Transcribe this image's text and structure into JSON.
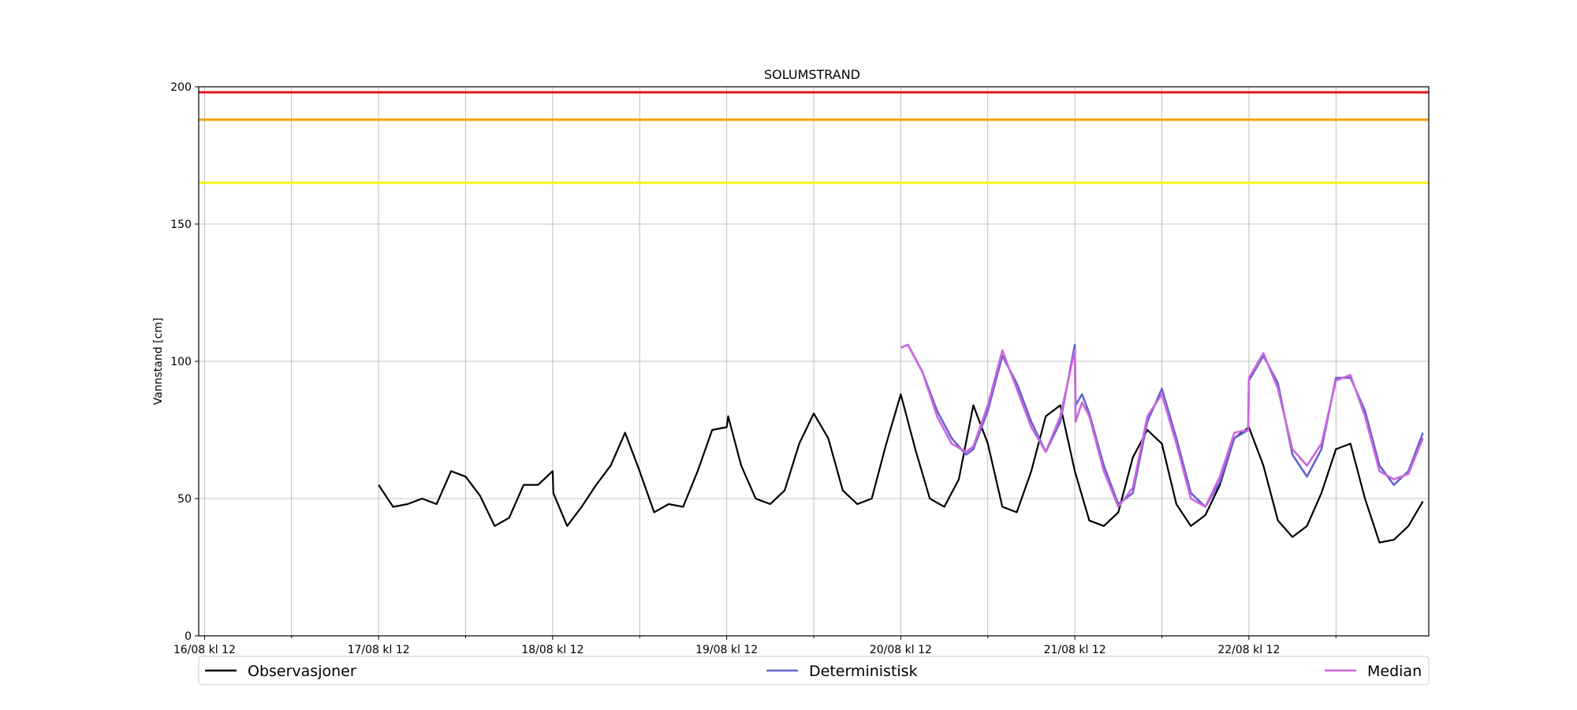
{
  "chart_data": {
    "type": "line",
    "title": "SOLUMSTRAND",
    "xlabel": "",
    "ylabel": "Vannstand [cm]",
    "x_unit": "hours from 16/08 kl 12",
    "xlim": [
      -0.8,
      168.8
    ],
    "ylim": [
      0,
      200
    ],
    "yticks": [
      0,
      50,
      100,
      150,
      200
    ],
    "xticks_major": [
      {
        "x": 0,
        "label": "16/08 kl 12"
      },
      {
        "x": 24,
        "label": "17/08 kl 12"
      },
      {
        "x": 48,
        "label": "18/08 kl 12"
      },
      {
        "x": 72,
        "label": "19/08 kl 12"
      },
      {
        "x": 96,
        "label": "20/08 kl 12"
      },
      {
        "x": 120,
        "label": "21/08 kl 12"
      },
      {
        "x": 144,
        "label": "22/08 kl 12"
      }
    ],
    "xticks_minor": [
      12,
      36,
      60,
      84,
      108,
      132,
      156
    ],
    "grid": true,
    "thresholds": [
      {
        "level": 198,
        "color": "#e8141e"
      },
      {
        "level": 188,
        "color": "#f5a30a"
      },
      {
        "level": 165,
        "color": "#f5f51e"
      }
    ],
    "legend_placement": "bottom",
    "series": [
      {
        "name": "Observasjoner",
        "color": "#000000",
        "x": [
          24,
          26,
          28,
          30,
          32,
          34,
          36,
          38,
          40,
          42,
          44,
          46,
          48,
          48.1,
          50,
          52,
          54,
          56,
          58,
          60,
          62,
          64,
          66,
          68,
          70,
          72,
          72.2,
          74,
          76,
          78,
          80,
          82,
          84,
          86,
          88,
          90,
          92,
          94,
          96,
          98,
          100,
          102,
          104,
          106,
          108,
          110,
          112,
          114,
          116,
          118,
          120,
          122,
          124,
          126,
          128,
          130,
          132,
          134,
          136,
          138,
          140,
          142,
          144,
          146,
          148,
          150,
          152,
          154,
          156,
          158,
          160,
          162,
          164,
          166,
          168
        ],
        "y": [
          55,
          47,
          48,
          50,
          48,
          60,
          58,
          51,
          40,
          43,
          55,
          55,
          60,
          52,
          40,
          47,
          55,
          62,
          74,
          60,
          45,
          48,
          47,
          60,
          75,
          76,
          80,
          62,
          50,
          48,
          53,
          70,
          81,
          72,
          53,
          48,
          50,
          70,
          88,
          68,
          50,
          47,
          57,
          84,
          70,
          47,
          45,
          60,
          80,
          84,
          60,
          42,
          40,
          45,
          65,
          75,
          70,
          48,
          40,
          44,
          55,
          72,
          76,
          62,
          42,
          36,
          40,
          52,
          68,
          70,
          50,
          34,
          35,
          40,
          49
        ]
      },
      {
        "name": "Deterministisk",
        "color": "#6464d2",
        "x": [
          96,
          97,
          99,
          101,
          103,
          105,
          106,
          108,
          110,
          112,
          114,
          116,
          118,
          120,
          120.1,
          121,
          122,
          124,
          126,
          128,
          130,
          132,
          134,
          136,
          138,
          140,
          142,
          143.9,
          144,
          146,
          148,
          150,
          152,
          154,
          156,
          158,
          160,
          162,
          164,
          166,
          168
        ],
        "y": [
          105,
          106,
          96,
          82,
          72,
          66,
          68,
          82,
          102,
          92,
          78,
          67,
          78,
          106,
          84,
          88,
          81,
          62,
          48,
          52,
          78,
          90,
          72,
          52,
          47,
          56,
          72,
          75,
          93,
          102,
          92,
          66,
          58,
          68,
          94,
          94,
          82,
          62,
          55,
          60,
          74
        ]
      },
      {
        "name": "Median",
        "color": "#cc66dd",
        "x": [
          96,
          97,
          99,
          101,
          103,
          105,
          106,
          108,
          110,
          112,
          114,
          116,
          118,
          120,
          120.1,
          121,
          122,
          124,
          126,
          128,
          130,
          132,
          134,
          136,
          138,
          140,
          142,
          143.9,
          144,
          146,
          148,
          150,
          152,
          154,
          156,
          158,
          160,
          162,
          164,
          166,
          168
        ],
        "y": [
          105,
          106,
          96,
          80,
          70,
          67,
          69,
          84,
          104,
          90,
          76,
          67,
          80,
          104,
          78,
          85,
          80,
          60,
          47,
          54,
          80,
          88,
          70,
          50,
          47,
          58,
          74,
          75,
          94,
          103,
          90,
          68,
          62,
          70,
          93,
          95,
          80,
          60,
          57,
          59,
          72
        ]
      }
    ]
  }
}
